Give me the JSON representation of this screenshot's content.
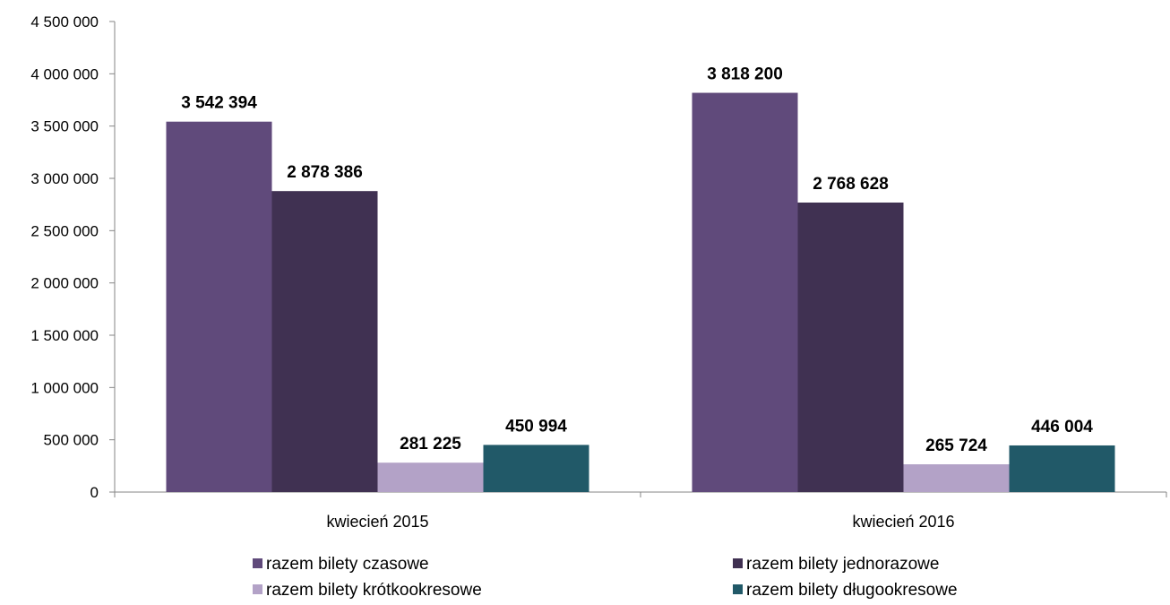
{
  "chart_data": {
    "type": "bar",
    "categories": [
      "kwiecień 2015",
      "kwiecień 2016"
    ],
    "series": [
      {
        "name": "razem bilety czasowe",
        "values": [
          3542394,
          3818200
        ],
        "labels": [
          "3 542 394",
          "3 818 200"
        ],
        "color": "#604a7b"
      },
      {
        "name": "razem bilety jednorazowe",
        "values": [
          2878386,
          2768628
        ],
        "labels": [
          "2 878 386",
          "2 768 628"
        ],
        "color": "#403152"
      },
      {
        "name": "razem bilety krótkookresowe",
        "values": [
          281225,
          265724
        ],
        "labels": [
          "281 225",
          "265 724"
        ],
        "color": "#b3a2c7"
      },
      {
        "name": "razem bilety długookresowe",
        "values": [
          450994,
          446004
        ],
        "labels": [
          "450 994",
          "446 004"
        ],
        "color": "#215968"
      }
    ],
    "ylim": [
      0,
      4500000
    ],
    "yticks": [
      0,
      500000,
      1000000,
      1500000,
      2000000,
      2500000,
      3000000,
      3500000,
      4000000,
      4500000
    ],
    "ytick_labels": [
      "0",
      "500 000",
      "1 000 000",
      "1 500 000",
      "2 000 000",
      "2 500 000",
      "3 000 000",
      "3 500 000",
      "4 000 000",
      "4 500 000"
    ],
    "grid": false,
    "legend_position": "bottom",
    "title": "",
    "xlabel": "",
    "ylabel": ""
  }
}
